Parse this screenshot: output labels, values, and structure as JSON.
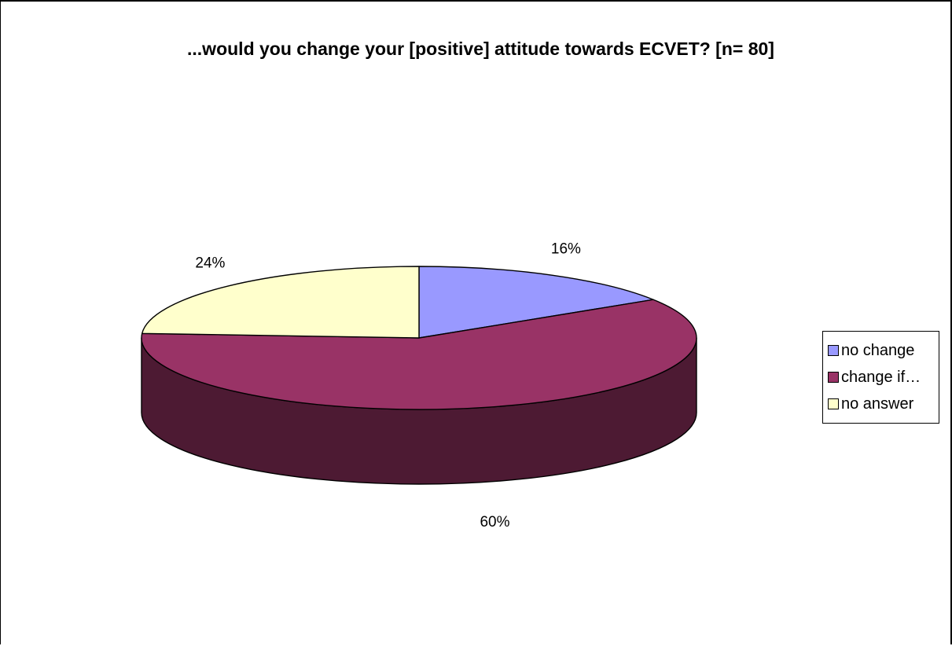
{
  "chart_data": {
    "type": "pie",
    "title": "...would you change your [positive] attitude towards ECVET? [n= 80]",
    "categories": [
      "no change",
      "change if…",
      "no answer"
    ],
    "values": [
      16,
      60,
      24
    ],
    "value_labels": [
      "16%",
      "60%",
      "24%"
    ],
    "colors": [
      "#9999FF",
      "#993366",
      "#FFFFCC"
    ],
    "side_colors": [
      "#5c5c99",
      "#4d1a33",
      "#99997a"
    ],
    "legend_placement": "right"
  }
}
